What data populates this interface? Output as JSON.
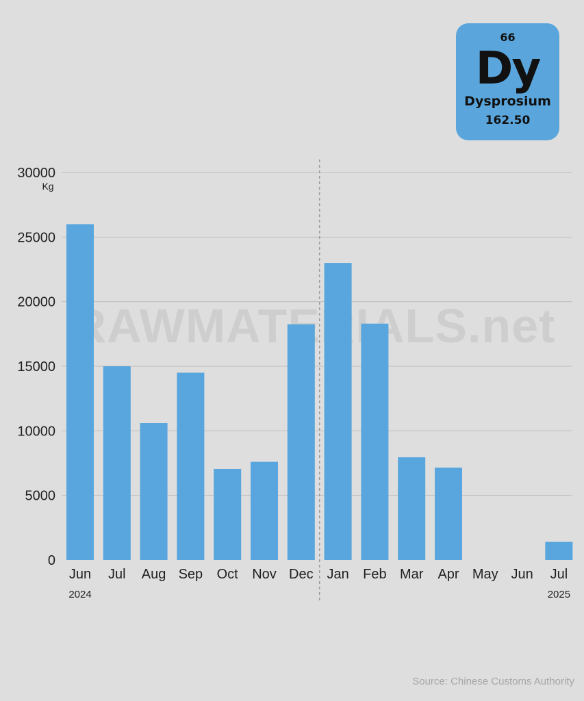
{
  "element": {
    "number": "66",
    "symbol": "Dy",
    "name": "Dysprosium",
    "mass": "162.50",
    "color": "#5aa6dc"
  },
  "watermark": "RAWMATERIALS.net",
  "source": "Source: Chinese Customs Authority",
  "chart_data": {
    "type": "bar",
    "title": "",
    "xlabel": "",
    "ylabel": "",
    "unit": "Kg",
    "categories": [
      "Jun",
      "Jul",
      "Aug",
      "Sep",
      "Oct",
      "Nov",
      "Dec",
      "Jan",
      "Feb",
      "Mar",
      "Apr",
      "May",
      "Jun",
      "Jul"
    ],
    "year_labels": [
      "2024",
      "2025"
    ],
    "values": [
      26000,
      15000,
      10600,
      14500,
      7050,
      7600,
      18250,
      23000,
      18300,
      7950,
      7150,
      0,
      0,
      1400
    ],
    "ylim": [
      0,
      30000
    ],
    "yticks": [
      0,
      5000,
      10000,
      15000,
      20000,
      25000,
      30000
    ],
    "grid": true,
    "bar_color": "#58a6dd",
    "year_divider_after": "Dec"
  }
}
